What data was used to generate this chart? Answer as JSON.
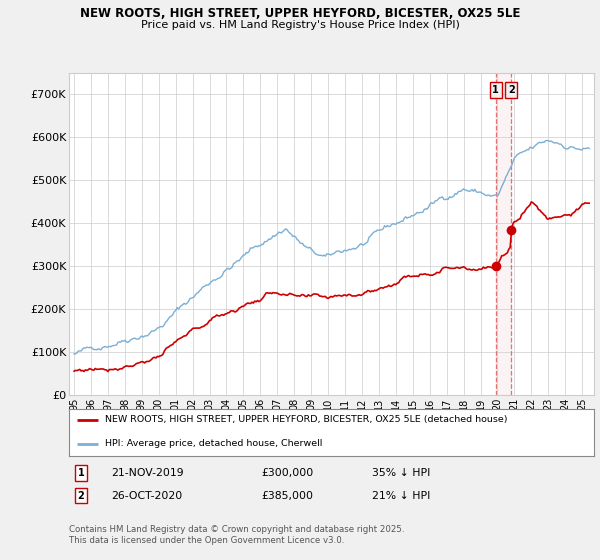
{
  "title_line1": "NEW ROOTS, HIGH STREET, UPPER HEYFORD, BICESTER, OX25 5LE",
  "title_line2": "Price paid vs. HM Land Registry's House Price Index (HPI)",
  "ylim": [
    0,
    750000
  ],
  "yticks": [
    0,
    100000,
    200000,
    300000,
    400000,
    500000,
    600000,
    700000
  ],
  "ytick_labels": [
    "£0",
    "£100K",
    "£200K",
    "£300K",
    "£400K",
    "£500K",
    "£600K",
    "£700K"
  ],
  "hpi_color": "#7bafd4",
  "property_color": "#cc0000",
  "vline_color": "#dd6666",
  "vline_fill": "#f0d0d0",
  "legend_property": "NEW ROOTS, HIGH STREET, UPPER HEYFORD, BICESTER, OX25 5LE (detached house)",
  "legend_hpi": "HPI: Average price, detached house, Cherwell",
  "footer": "Contains HM Land Registry data © Crown copyright and database right 2025.\nThis data is licensed under the Open Government Licence v3.0.",
  "background_color": "#f0f0f0",
  "plot_bg_color": "#ffffff",
  "grid_color": "#cccccc",
  "sale1_year": 2019.893,
  "sale1_price": 300000,
  "sale2_year": 2020.822,
  "sale2_price": 385000
}
